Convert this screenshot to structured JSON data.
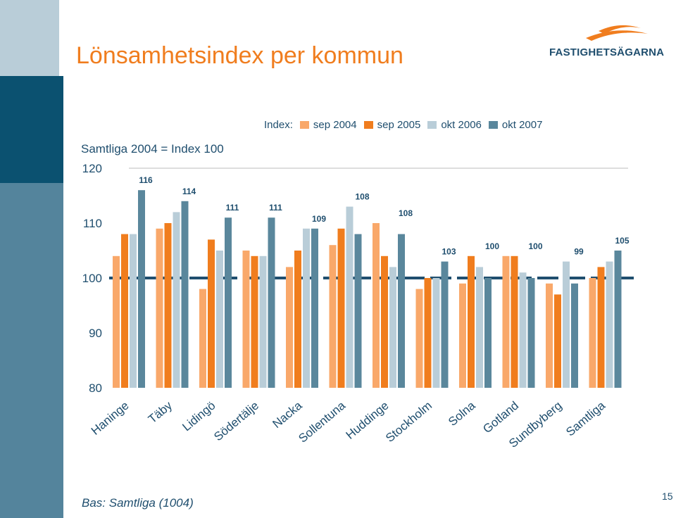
{
  "title": "Lönsamhetsindex per kommun",
  "logo_text": "FASTIGHETSÄGARNA",
  "subtitle": "Samtliga 2004 = Index 100",
  "legend_label": "Index:",
  "footnote": "Bas: Samtliga (1004)",
  "page_number": "15",
  "colors": {
    "title": "#f07d1e",
    "text": "#1f4e6e",
    "sidebar_dark": "#0b5170",
    "sidebar_mid": "#54849c",
    "sidebar_light": "#b9cdd8",
    "reference_line": "#1f4e6e"
  },
  "chart_data": {
    "type": "bar",
    "categories": [
      "Haninge",
      "Täby",
      "Lidingö",
      "Södertälje",
      "Nacka",
      "Sollentuna",
      "Huddinge",
      "Stockholm",
      "Solna",
      "Gotland",
      "Sundbyberg",
      "Samtliga"
    ],
    "series": [
      {
        "name": "sep 2004",
        "color": "#f9a86a",
        "values": [
          104,
          109,
          98,
          105,
          102,
          106,
          110,
          98,
          99,
          104,
          99,
          100
        ]
      },
      {
        "name": "sep 2005",
        "color": "#f07d1e",
        "values": [
          108,
          110,
          107,
          104,
          105,
          109,
          104,
          100,
          104,
          104,
          97,
          102
        ]
      },
      {
        "name": "okt 2006",
        "color": "#b9cdd8",
        "values": [
          108,
          112,
          105,
          104,
          109,
          113,
          102,
          100,
          102,
          101,
          103,
          103
        ]
      },
      {
        "name": "okt 2007",
        "color": "#5a879c",
        "values": [
          116,
          114,
          111,
          111,
          109,
          108,
          108,
          103,
          100,
          100,
          99,
          105
        ]
      }
    ],
    "data_labels": [
      "116",
      "114",
      "111",
      "111",
      "109",
      "108",
      "108",
      "103",
      "100",
      "100",
      "99",
      "105"
    ],
    "ylim": [
      80,
      120
    ],
    "yticks": [
      "80",
      "90",
      "100",
      "110",
      "120"
    ],
    "reference_value": 100,
    "xlabel": "",
    "ylabel": ""
  }
}
